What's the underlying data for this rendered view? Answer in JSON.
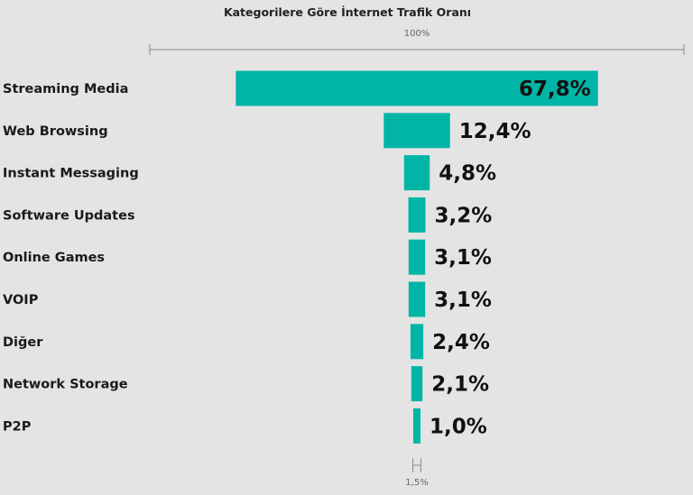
{
  "colors": {
    "background": "#e4e4e4",
    "bar": "#00b5a6",
    "text": "#1a1a1a",
    "axis": "#8a8a8a"
  },
  "chart_data": {
    "type": "bar",
    "orientation": "horizontal-funnel",
    "title": "Kategorilere Göre İnternet Trafik Oranı",
    "top_scale_label": "100%",
    "bottom_scale_label": "1,5%",
    "categories": [
      "Streaming Media",
      "Web Browsing",
      "Instant Messaging",
      "Software Updates",
      "Online Games",
      "VOIP",
      "Diğer",
      "Network Storage",
      "P2P"
    ],
    "values": [
      67.8,
      12.4,
      4.8,
      3.2,
      3.1,
      3.1,
      2.4,
      2.1,
      1.0
    ],
    "value_labels": [
      "67,8%",
      "12,4%",
      "4,8%",
      "3,2%",
      "3,1%",
      "3,1%",
      "2,4%",
      "2,1%",
      "1,0%"
    ],
    "xlim": [
      0,
      100
    ],
    "unit": "%"
  }
}
